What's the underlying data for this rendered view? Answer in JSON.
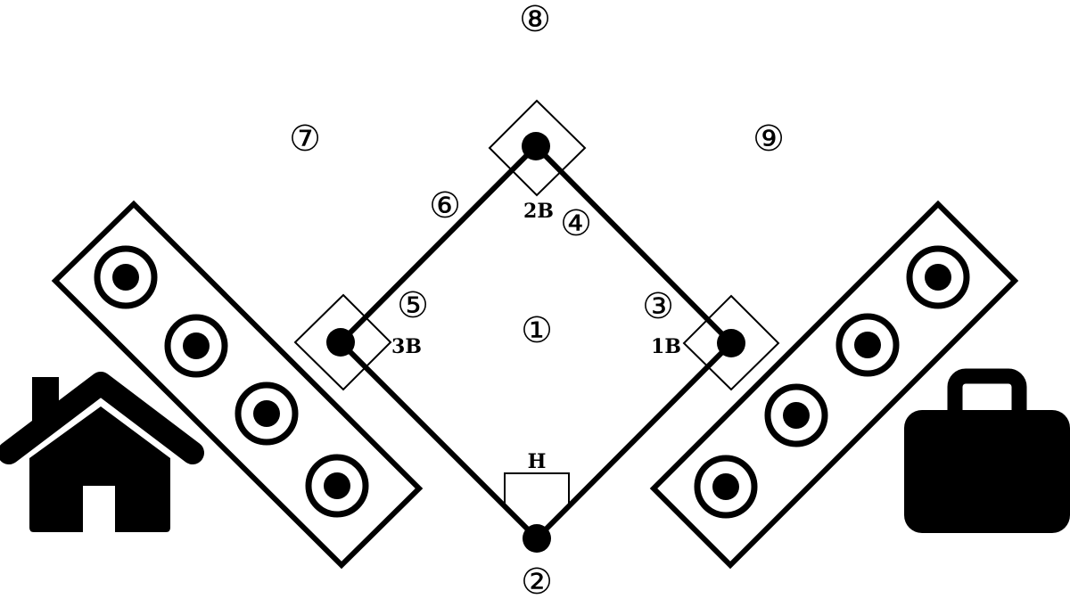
{
  "colors": {
    "ink": "#000000",
    "paper": "#ffffff"
  },
  "positions": [
    "①",
    "②",
    "③",
    "④",
    "⑤",
    "⑥",
    "⑦",
    "⑧",
    "⑨"
  ],
  "bases": {
    "first": "1B",
    "second": "2B",
    "third": "3B",
    "home": "H"
  },
  "icons": {
    "left": "house-icon",
    "right": "briefcase-icon"
  }
}
